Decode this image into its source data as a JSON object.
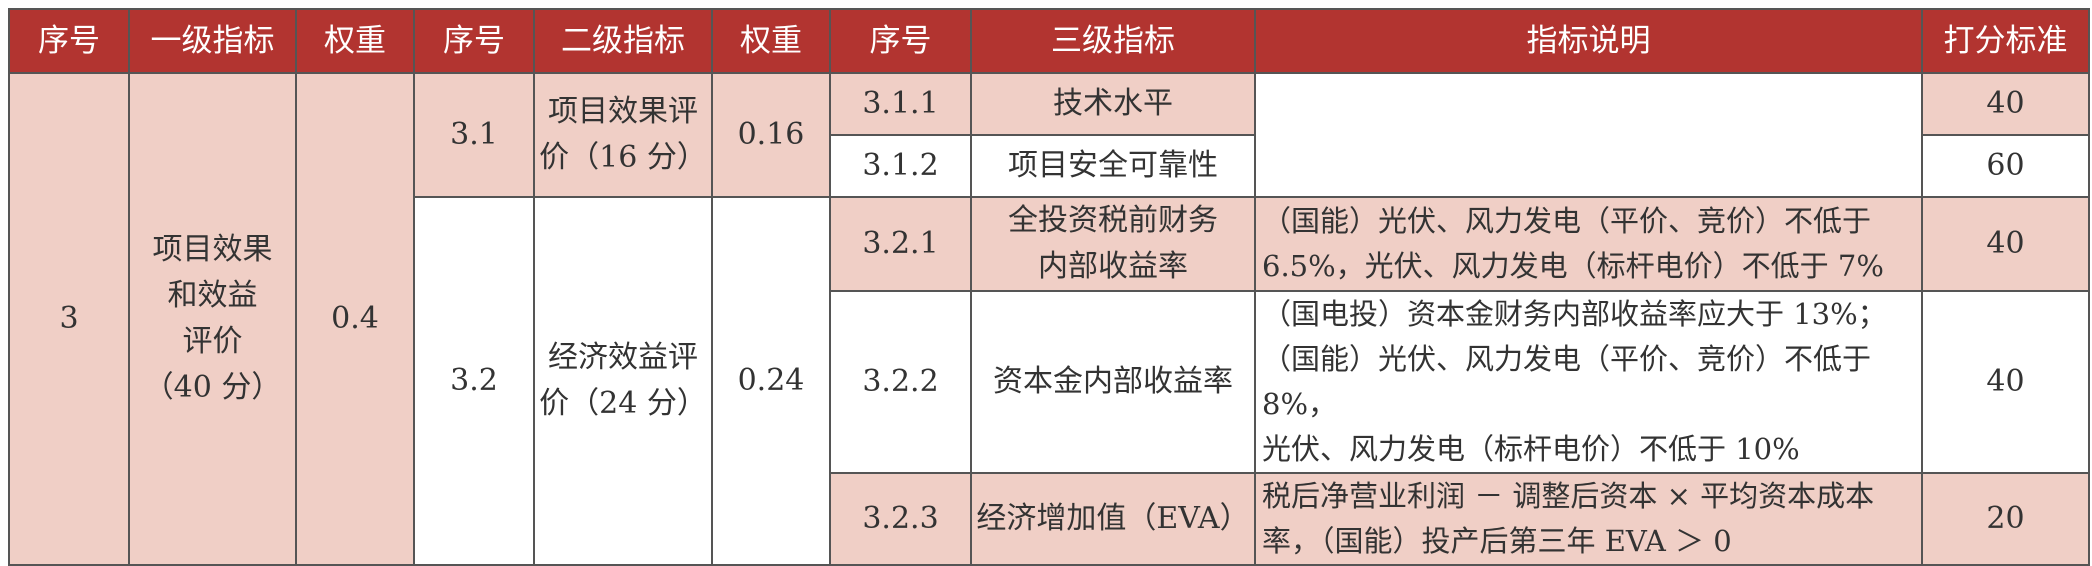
{
  "headers": [
    "序号",
    "一级指标",
    "权重",
    "序号",
    "二级指标",
    "权重",
    "序号",
    "三级指标",
    "指标说明",
    "打分标准"
  ],
  "level1": {
    "no": "3",
    "name_lines": [
      "项目效果",
      "和效益",
      "评价",
      "（40 分）"
    ],
    "weight": "0.4"
  },
  "level2": [
    {
      "no": "3.1",
      "name_lines": [
        "项目效果评",
        "价（16 分）"
      ],
      "weight": "0.16"
    },
    {
      "no": "3.2",
      "name_lines": [
        "经济效益评",
        "价（24 分）"
      ],
      "weight": "0.24"
    }
  ],
  "level3": [
    {
      "no": "3.1.1",
      "name_lines": [
        "技术水平"
      ],
      "desc_lines": [],
      "score": "40"
    },
    {
      "no": "3.1.2",
      "name_lines": [
        "项目安全可靠性"
      ],
      "desc_lines": [],
      "score": "60"
    },
    {
      "no": "3.2.1",
      "name_lines": [
        "全投资税前财务",
        "内部收益率"
      ],
      "desc_lines": [
        "（国能）光伏、风力发电（平价、竞价）不低于",
        "6.5%，光伏、风力发电（标杆电价）不低于 7%"
      ],
      "score": "40"
    },
    {
      "no": "3.2.2",
      "name_lines": [
        "资本金内部收益率"
      ],
      "desc_lines": [
        "（国电投）资本金财务内部收益率应大于 13%；",
        "（国能）光伏、风力发电（平价、竞价）不低于 8%，",
        "光伏、风力发电（标杆电价）不低于 10%"
      ],
      "score": "40"
    },
    {
      "no": "3.2.3",
      "name_lines": [
        "经济增加值（EVA）"
      ],
      "desc_lines": [
        "税后净营业利润 － 调整后资本 × 平均资本成本",
        "率，（国能）投产后第三年 EVA ＞ 0"
      ],
      "score": "20"
    }
  ]
}
